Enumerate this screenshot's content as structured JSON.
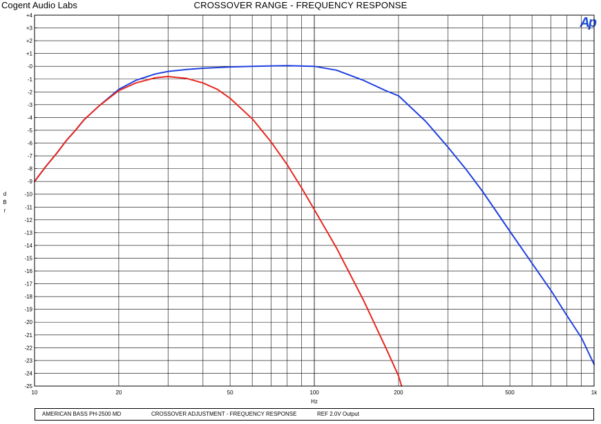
{
  "header": {
    "brand": "Cogent Audio Labs",
    "title": "CROSSOVER RANGE  -  FREQUENCY RESPONSE",
    "logo": "Ap"
  },
  "footer": {
    "device": "AMERICAN BASS PH-2500 MD",
    "description": "CROSSOVER ADJUSTMENT  -  FREQUENCY RESPONSE",
    "reference": "REF 2.0V Output"
  },
  "chart_data": {
    "type": "line",
    "title": "CROSSOVER RANGE  -  FREQUENCY RESPONSE",
    "xlabel": "Hz",
    "ylabel": "dBr",
    "xscale": "log",
    "xlim": [
      10,
      1000
    ],
    "ylim": [
      -25,
      4
    ],
    "grid": true,
    "x_ticks": [
      10,
      20,
      50,
      100,
      200,
      500,
      1000
    ],
    "x_tick_labels": [
      "10",
      "20",
      "50",
      "100",
      "200",
      "500",
      "1k"
    ],
    "y_ticks": [
      4,
      3,
      2,
      1,
      0,
      -1,
      -2,
      -3,
      -4,
      -5,
      -6,
      -7,
      -8,
      -9,
      -10,
      -11,
      -12,
      -13,
      -14,
      -15,
      -16,
      -17,
      -18,
      -19,
      -20,
      -21,
      -22,
      -23,
      -24,
      -25
    ],
    "y_tick_labels": [
      "+4",
      "+3",
      "+2",
      "+1",
      "-0",
      "-1",
      "-2",
      "-3",
      "-4",
      "-5",
      "-6",
      "-7",
      "-8",
      "-9",
      "-10",
      "-11",
      "-12",
      "-13",
      "-14",
      "-15",
      "-16",
      "-17",
      "-18",
      "-19",
      "-20",
      "-21",
      "-22",
      "-23",
      "-24",
      "-25"
    ],
    "series": [
      {
        "color": "#1f3fe0",
        "x": [
          10,
          11,
          12,
          13,
          14,
          15,
          17,
          20,
          23,
          27,
          30,
          35,
          40,
          50,
          60,
          80,
          100,
          120,
          150,
          180,
          200,
          250,
          300,
          350,
          400,
          500,
          600,
          700,
          800,
          900,
          1000
        ],
        "y": [
          -9.0,
          -7.8,
          -6.8,
          -5.8,
          -5.0,
          -4.2,
          -3.1,
          -1.8,
          -1.1,
          -0.6,
          -0.4,
          -0.25,
          -0.15,
          -0.05,
          0.0,
          0.05,
          0.0,
          -0.3,
          -1.1,
          -1.9,
          -2.3,
          -4.3,
          -6.3,
          -8.1,
          -9.8,
          -12.9,
          -15.4,
          -17.5,
          -19.5,
          -21.2,
          -23.3
        ]
      },
      {
        "color": "#e8261c",
        "x": [
          10,
          11,
          12,
          13,
          14,
          15,
          17,
          20,
          23,
          27,
          30,
          35,
          40,
          45,
          50,
          60,
          70,
          80,
          90,
          100,
          120,
          150,
          180,
          200,
          205
        ],
        "y": [
          -9.0,
          -7.8,
          -6.8,
          -5.8,
          -5.0,
          -4.2,
          -3.1,
          -1.9,
          -1.3,
          -0.9,
          -0.8,
          -0.95,
          -1.3,
          -1.8,
          -2.5,
          -4.1,
          -5.9,
          -7.7,
          -9.5,
          -11.2,
          -14.2,
          -18.3,
          -22.0,
          -24.2,
          -25.0
        ]
      }
    ]
  }
}
